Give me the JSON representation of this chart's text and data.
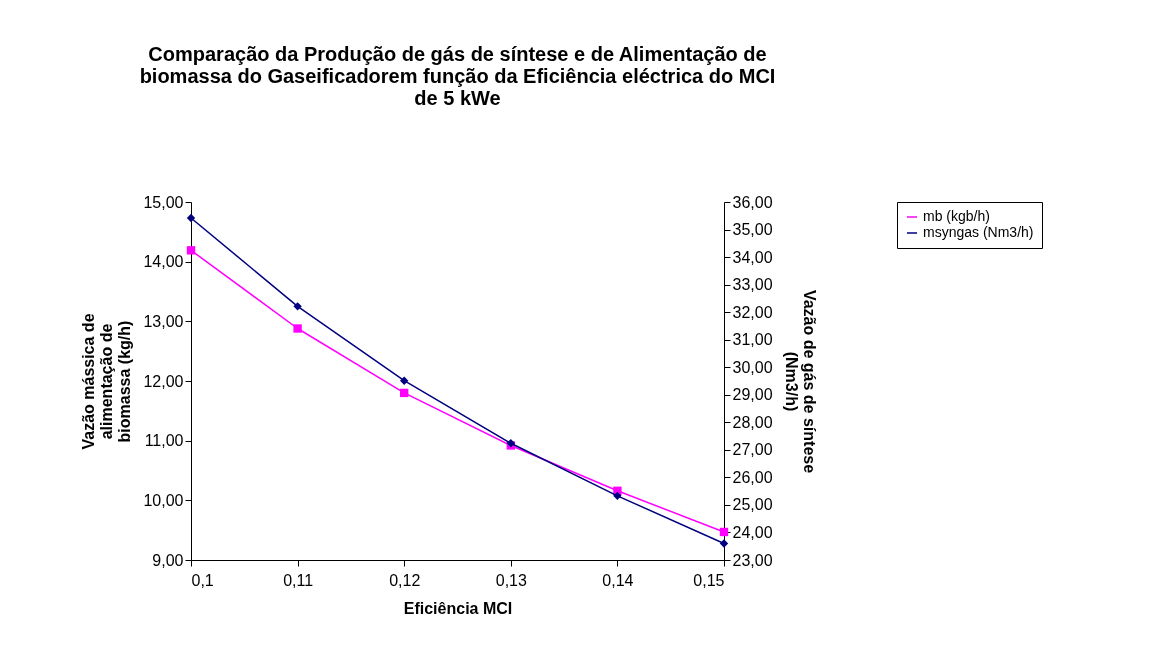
{
  "chart_data": {
    "type": "line",
    "title": "Comparação da Produção de gás de síntese e de Alimentação de\nbiomassa do Gaseificadorem função da Eficiência eléctrica do MCI\nde 5 kWe",
    "xlabel": "Eficiência MCI",
    "ylabel": "Vazão mássica de\nalimentação de\nbiomassa (kg/h)",
    "y2label": "Vazão de gás de síntese\n(Nm3/h)",
    "categories": [
      "0,1",
      "0,11",
      "0,12",
      "0,13",
      "0,14",
      "0,15"
    ],
    "series": [
      {
        "name": "mb (kgb/h)",
        "color": "#ff00ff",
        "marker": "square",
        "values": [
          14.19,
          12.88,
          11.8,
          10.92,
          10.16,
          9.47
        ]
      },
      {
        "name": "msyngas (Nm3/h)",
        "color": "#000080",
        "marker": "diamond",
        "axis": "y2",
        "values": [
          35.42,
          32.21,
          29.51,
          27.24,
          25.33,
          23.6
        ]
      }
    ],
    "ylim": [
      9,
      15
    ],
    "yticks": [
      {
        "value": 9,
        "label": "9,00"
      },
      {
        "value": 10,
        "label": "10,00"
      },
      {
        "value": 11,
        "label": "11,00"
      },
      {
        "value": 12,
        "label": "12,00"
      },
      {
        "value": 13,
        "label": "13,00"
      },
      {
        "value": 14,
        "label": "14,00"
      },
      {
        "value": 15,
        "label": "15,00"
      }
    ],
    "y2lim": [
      23,
      36
    ],
    "y2ticks": [
      {
        "value": 23,
        "label": "23,00"
      },
      {
        "value": 24,
        "label": "24,00"
      },
      {
        "value": 25,
        "label": "25,00"
      },
      {
        "value": 26,
        "label": "26,00"
      },
      {
        "value": 27,
        "label": "27,00"
      },
      {
        "value": 28,
        "label": "28,00"
      },
      {
        "value": 29,
        "label": "29,00"
      },
      {
        "value": 30,
        "label": "30,00"
      },
      {
        "value": 31,
        "label": "31,00"
      },
      {
        "value": 32,
        "label": "32,00"
      },
      {
        "value": 33,
        "label": "33,00"
      },
      {
        "value": 34,
        "label": "34,00"
      },
      {
        "value": 35,
        "label": "35,00"
      },
      {
        "value": 36,
        "label": "36,00"
      }
    ],
    "grid": false,
    "legend": "right"
  }
}
